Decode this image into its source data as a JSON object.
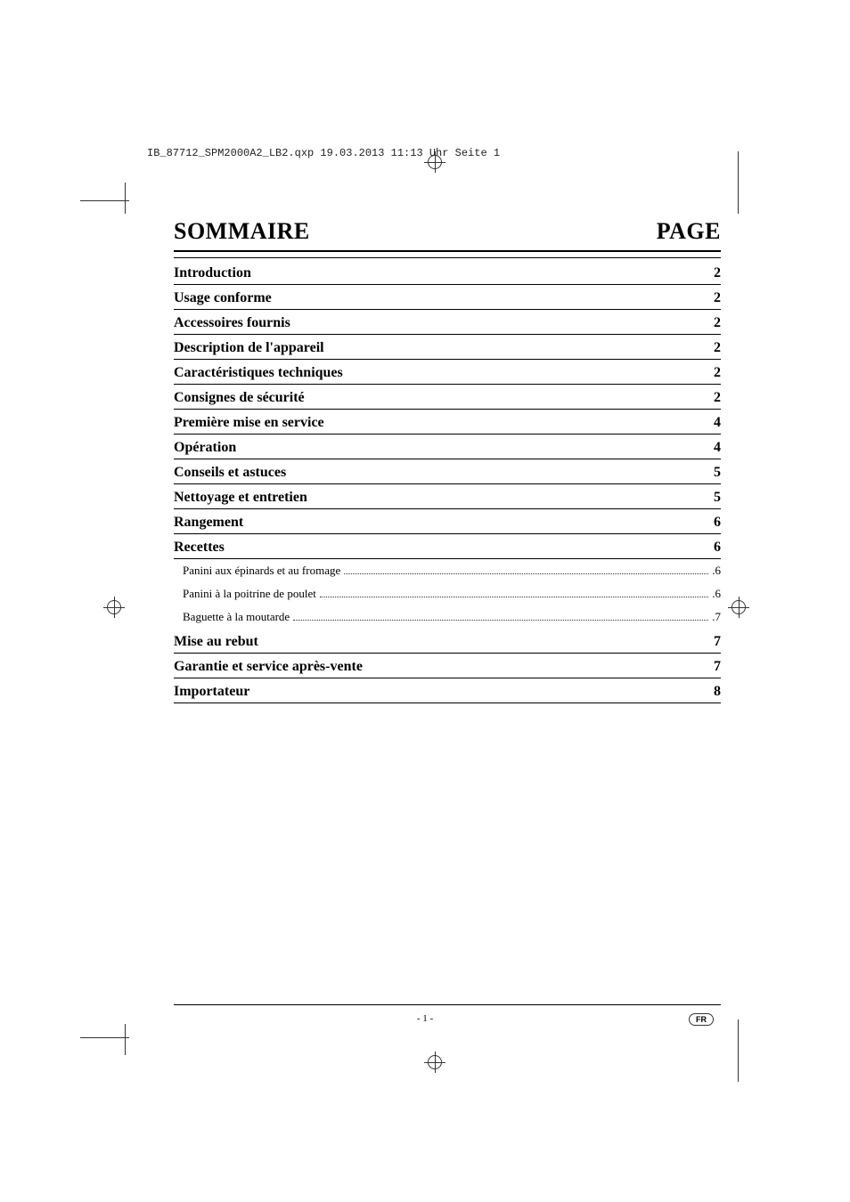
{
  "file_info": "IB_87712_SPM2000A2_LB2.qxp  19.03.2013  11:13 Uhr  Seite 1",
  "header": {
    "left": "SOMMAIRE",
    "right": "PAGE"
  },
  "toc": [
    {
      "label": "Introduction",
      "page": "2"
    },
    {
      "label": "Usage conforme",
      "page": "2"
    },
    {
      "label": "Accessoires fournis",
      "page": "2"
    },
    {
      "label": "Description de l'appareil",
      "page": "2"
    },
    {
      "label": "Caractéristiques techniques",
      "page": "2"
    },
    {
      "label": "Consignes de sécurité",
      "page": "2"
    },
    {
      "label": "Première mise en service",
      "page": "4"
    },
    {
      "label": "Opération",
      "page": "4"
    },
    {
      "label": "Conseils et astuces",
      "page": "5"
    },
    {
      "label": "Nettoyage et entretien",
      "page": "5"
    },
    {
      "label": "Rangement",
      "page": "6"
    },
    {
      "label": "Recettes",
      "page": "6",
      "subitems": [
        {
          "label": "Panini aux épinards et au fromage",
          "page": ".6"
        },
        {
          "label": "Panini à la poitrine de poulet",
          "page": ".6"
        },
        {
          "label": "Baguette à la moutarde",
          "page": ".7"
        }
      ]
    },
    {
      "label": "Mise au rebut",
      "page": "7"
    },
    {
      "label": "Garantie et service après-vente",
      "page": "7"
    },
    {
      "label": "Importateur",
      "page": "8"
    }
  ],
  "page_number": "- 1 -",
  "lang_badge": "FR",
  "styling": {
    "page_bg": "#ffffff",
    "text_color": "#000000",
    "border_color": "#000000",
    "title_fontsize": 26,
    "label_fontsize": 16,
    "sublabel_fontsize": 13,
    "fileinfo_fontsize": 12,
    "pagenum_fontsize": 11,
    "badge_fontsize": 9
  }
}
